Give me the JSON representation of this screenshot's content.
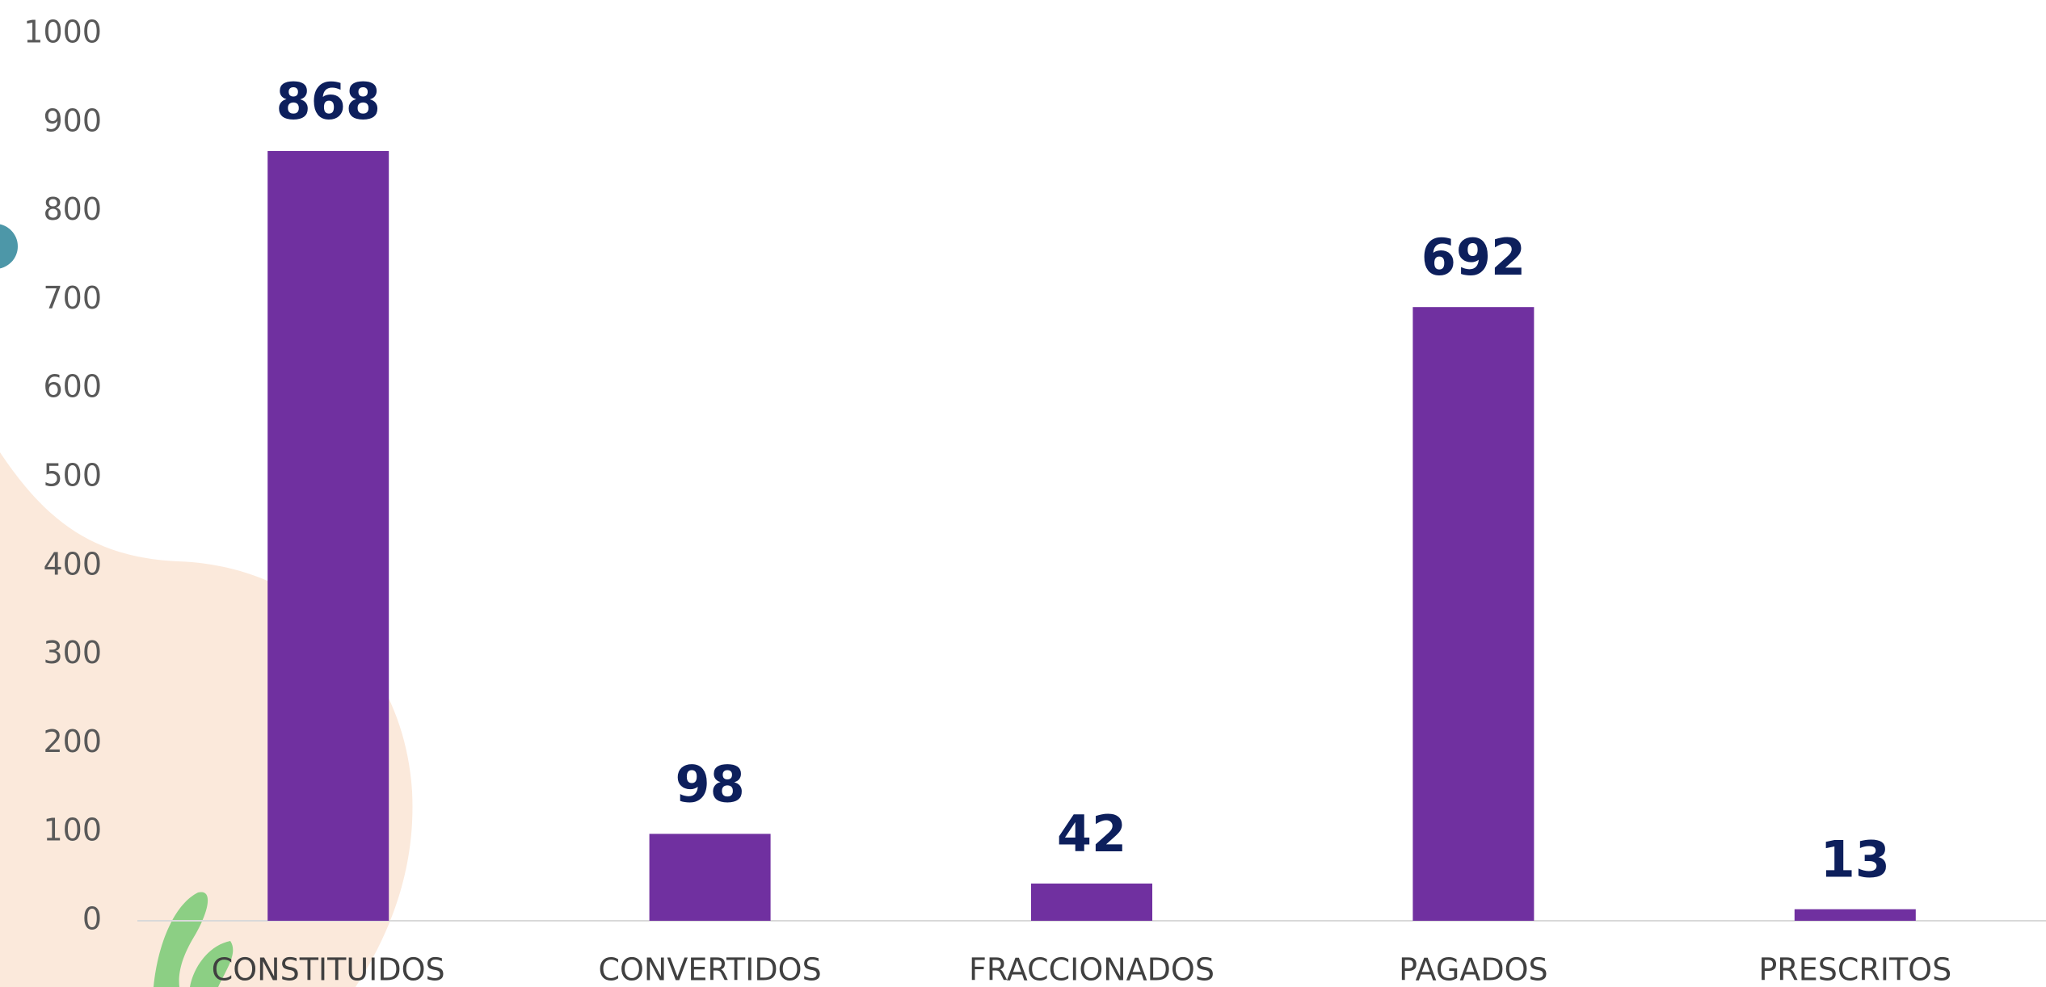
{
  "chart_data": {
    "type": "bar",
    "categories": [
      "CONSTITUIDOS",
      "CONVERTIDOS",
      "FRACCIONADOS",
      "PAGADOS",
      "PRESCRITOS"
    ],
    "values": [
      868,
      98,
      42,
      692,
      13
    ],
    "color": "#7030a0",
    "ylim": [
      0,
      1000
    ],
    "yticks": [
      0,
      100,
      200,
      300,
      400,
      500,
      600,
      700,
      800,
      900,
      1000
    ],
    "grid": false
  }
}
